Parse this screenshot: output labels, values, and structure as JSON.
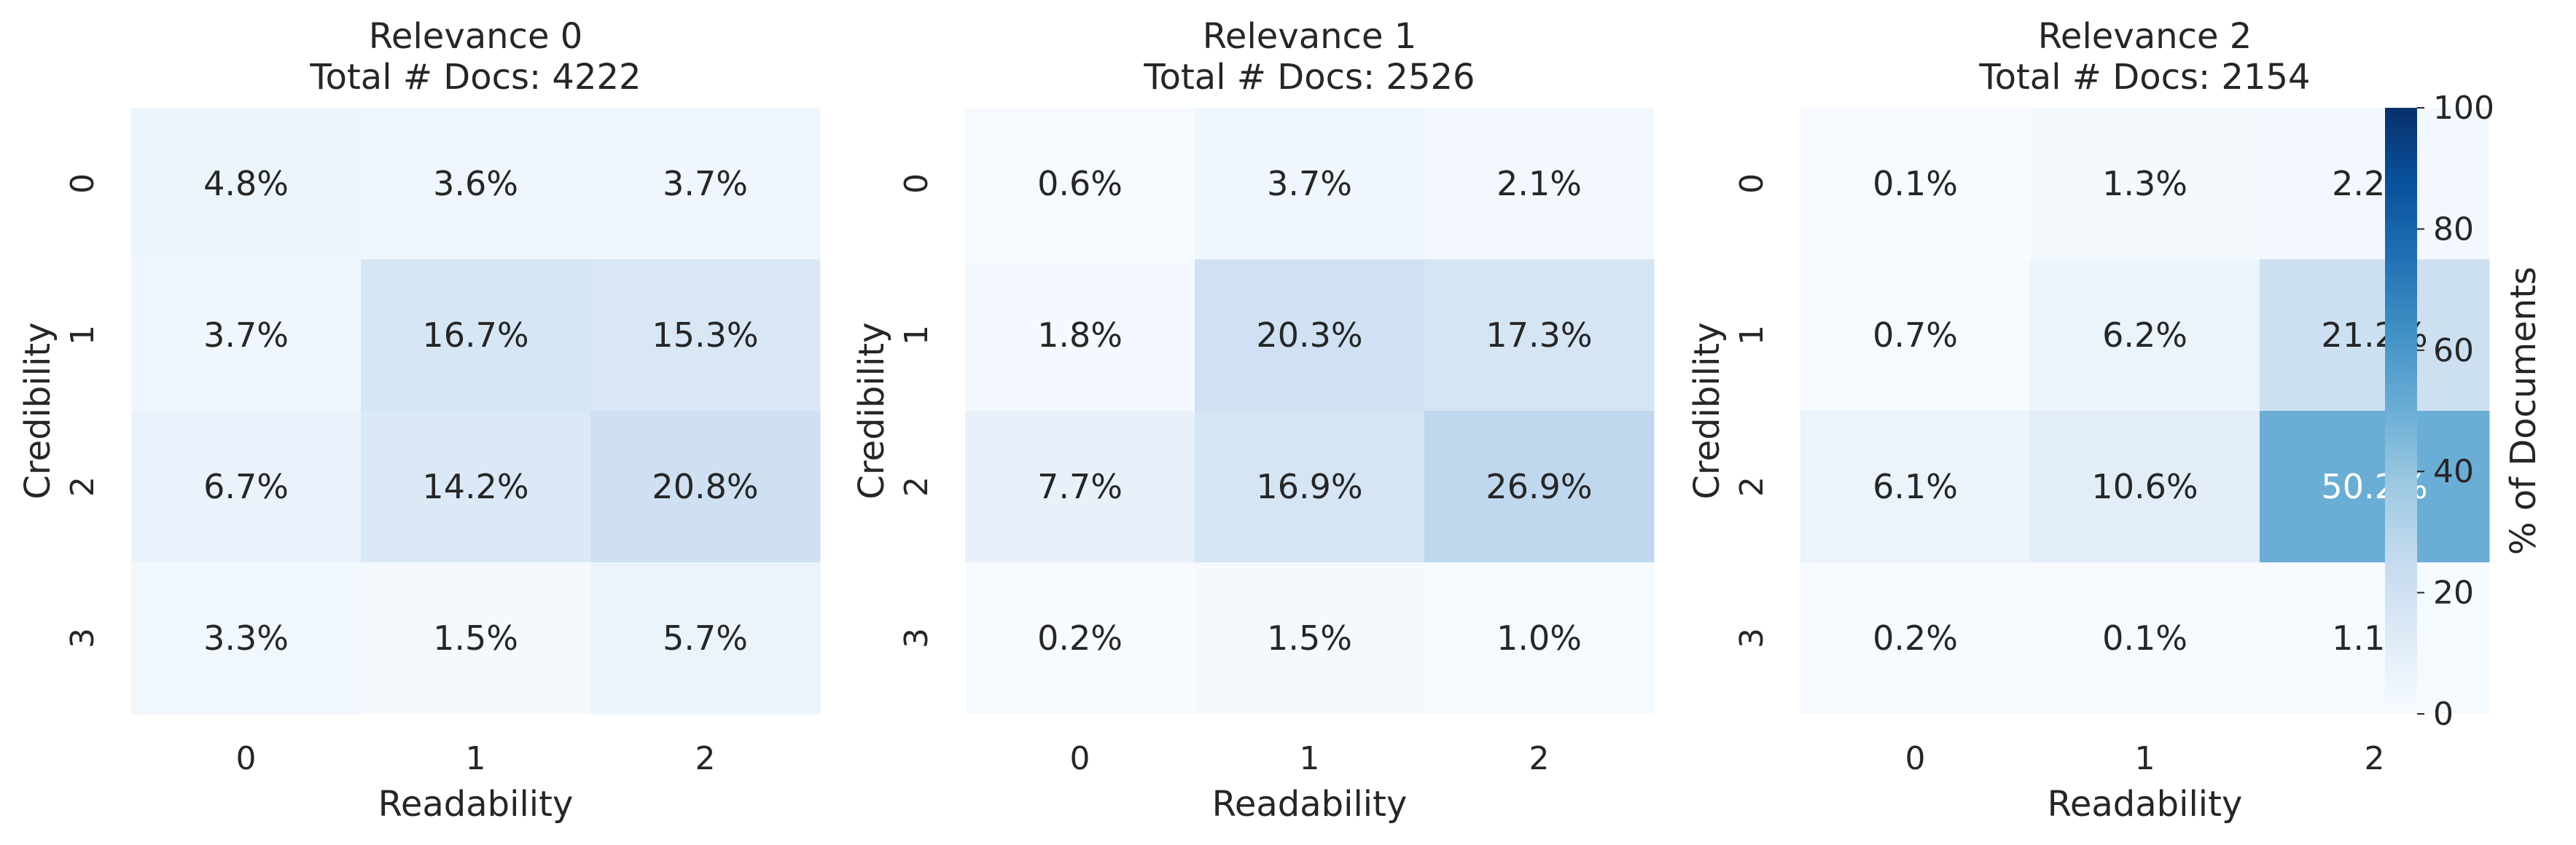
{
  "chart_data": [
    {
      "type": "heatmap",
      "title": "Relevance 0",
      "subtitle": "Total # Docs: 4222",
      "xlabel": "Readability",
      "ylabel": "Credibility",
      "x_categories": [
        "0",
        "1",
        "2"
      ],
      "y_categories": [
        "0",
        "1",
        "2",
        "3"
      ],
      "values": [
        [
          4.8,
          3.6,
          3.7
        ],
        [
          3.7,
          16.7,
          15.3
        ],
        [
          6.7,
          14.2,
          20.8
        ],
        [
          3.3,
          1.5,
          5.7
        ]
      ],
      "cell_labels": [
        [
          "4.8%",
          "3.6%",
          "3.7%"
        ],
        [
          "3.7%",
          "16.7%",
          "15.3%"
        ],
        [
          "6.7%",
          "14.2%",
          "20.8%"
        ],
        [
          "3.3%",
          "1.5%",
          "5.7%"
        ]
      ],
      "value_range": [
        0,
        100
      ]
    },
    {
      "type": "heatmap",
      "title": "Relevance 1",
      "subtitle": "Total # Docs: 2526",
      "xlabel": "Readability",
      "ylabel": "Credibility",
      "x_categories": [
        "0",
        "1",
        "2"
      ],
      "y_categories": [
        "0",
        "1",
        "2",
        "3"
      ],
      "values": [
        [
          0.6,
          3.7,
          2.1
        ],
        [
          1.8,
          20.3,
          17.3
        ],
        [
          7.7,
          16.9,
          26.9
        ],
        [
          0.2,
          1.5,
          1.0
        ]
      ],
      "cell_labels": [
        [
          "0.6%",
          "3.7%",
          "2.1%"
        ],
        [
          "1.8%",
          "20.3%",
          "17.3%"
        ],
        [
          "7.7%",
          "16.9%",
          "26.9%"
        ],
        [
          "0.2%",
          "1.5%",
          "1.0%"
        ]
      ],
      "value_range": [
        0,
        100
      ]
    },
    {
      "type": "heatmap",
      "title": "Relevance 2",
      "subtitle": "Total # Docs: 2154",
      "xlabel": "Readability",
      "ylabel": "Credibility",
      "x_categories": [
        "0",
        "1",
        "2"
      ],
      "y_categories": [
        "0",
        "1",
        "2",
        "3"
      ],
      "values": [
        [
          0.1,
          1.3,
          2.2
        ],
        [
          0.7,
          6.2,
          21.2
        ],
        [
          6.1,
          10.6,
          50.2
        ],
        [
          0.2,
          0.1,
          1.1
        ]
      ],
      "cell_labels": [
        [
          "0.1%",
          "1.3%",
          "2.2%"
        ],
        [
          "0.7%",
          "6.2%",
          "21.2%"
        ],
        [
          "6.1%",
          "10.6%",
          "50.2%"
        ],
        [
          "0.2%",
          "0.1%",
          "1.1%"
        ]
      ],
      "value_range": [
        0,
        100
      ]
    }
  ],
  "colorbar": {
    "label": "% of Documents",
    "ticks": [
      "0",
      "20",
      "40",
      "60",
      "80",
      "100"
    ],
    "tick_values": [
      0,
      20,
      40,
      60,
      80,
      100
    ],
    "range": [
      0,
      100
    ],
    "colormap": "Blues",
    "color_stops": [
      "#f7fbff",
      "#deebf7",
      "#c6dbef",
      "#9ecae1",
      "#6baed6",
      "#4292c6",
      "#2171b5",
      "#08519c",
      "#08306b"
    ]
  }
}
